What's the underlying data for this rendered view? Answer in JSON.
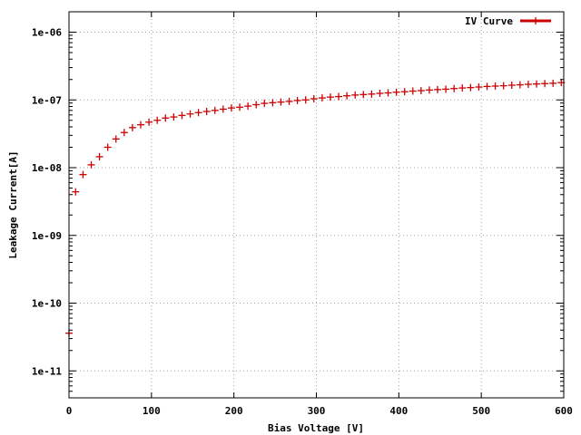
{
  "chart_data": {
    "type": "scatter",
    "title": "",
    "xlabel": "Bias Voltage [V]",
    "ylabel": "Leakage Current[A]",
    "xlim": [
      0,
      600
    ],
    "ylim": [
      4e-12,
      2e-06
    ],
    "yscale": "log",
    "grid": true,
    "legend_position": "top-right",
    "x_ticks": [
      0,
      100,
      200,
      300,
      400,
      500,
      600
    ],
    "x_tick_labels": [
      "0",
      "100",
      "200",
      "300",
      "400",
      "500",
      "600"
    ],
    "y_ticks": [
      1e-11,
      1e-10,
      1e-09,
      1e-08,
      1e-07,
      1e-06
    ],
    "y_tick_labels": [
      "1e-11",
      "1e-10",
      "1e-09",
      "1e-08",
      "1e-07",
      "1e-06"
    ],
    "series": [
      {
        "name": "IV Curve",
        "color": "#cc0000",
        "marker": "plus",
        "x": [
          0,
          8,
          17,
          27,
          37,
          47,
          57,
          67,
          77,
          87,
          97,
          107,
          117,
          127,
          137,
          147,
          157,
          167,
          177,
          187,
          197,
          207,
          217,
          227,
          237,
          247,
          257,
          267,
          277,
          287,
          297,
          307,
          317,
          327,
          337,
          347,
          357,
          367,
          377,
          387,
          397,
          407,
          417,
          427,
          437,
          447,
          457,
          467,
          477,
          487,
          497,
          507,
          517,
          527,
          537,
          547,
          557,
          567,
          577,
          587,
          597
        ],
        "y": [
          3.6e-11,
          4.4e-09,
          7.9e-09,
          1.1e-08,
          1.45e-08,
          2e-08,
          2.65e-08,
          3.3e-08,
          3.9e-08,
          4.3e-08,
          4.7e-08,
          5e-08,
          5.4e-08,
          5.6e-08,
          5.9e-08,
          6.2e-08,
          6.5e-08,
          6.75e-08,
          7e-08,
          7.3e-08,
          7.6e-08,
          7.8e-08,
          8.1e-08,
          8.5e-08,
          8.9e-08,
          9.1e-08,
          9.3e-08,
          9.5e-08,
          9.8e-08,
          1e-07,
          1.04e-07,
          1.07e-07,
          1.1e-07,
          1.12e-07,
          1.15e-07,
          1.18e-07,
          1.2e-07,
          1.22e-07,
          1.25e-07,
          1.27e-07,
          1.3e-07,
          1.32e-07,
          1.35e-07,
          1.37e-07,
          1.4e-07,
          1.42e-07,
          1.44e-07,
          1.47e-07,
          1.5e-07,
          1.52e-07,
          1.55e-07,
          1.58e-07,
          1.6e-07,
          1.62e-07,
          1.65e-07,
          1.67e-07,
          1.7e-07,
          1.72e-07,
          1.74e-07,
          1.76e-07,
          1.8e-07
        ]
      }
    ]
  }
}
